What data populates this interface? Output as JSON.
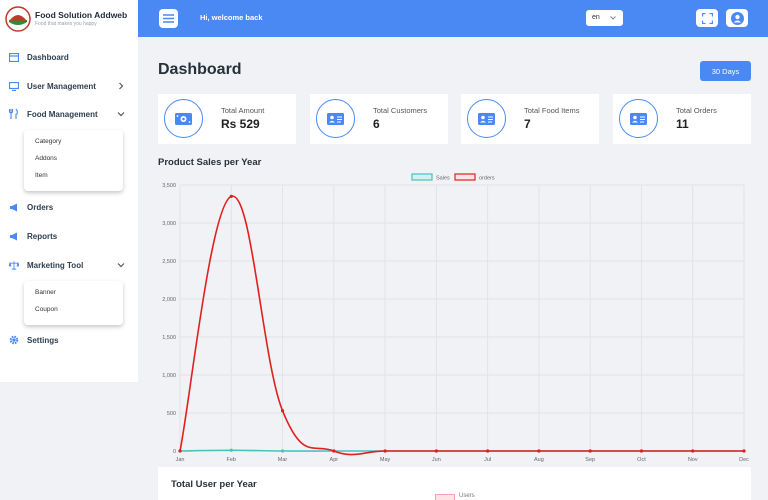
{
  "brand": {
    "name": "Food Solution Addweb",
    "tagline": "Food that makes you happy"
  },
  "sidebar": {
    "items": [
      {
        "label": "Dashboard"
      },
      {
        "label": "User Management"
      },
      {
        "label": "Food Management"
      },
      {
        "label": "Orders"
      },
      {
        "label": "Reports"
      },
      {
        "label": "Marketing Tool"
      },
      {
        "label": "Settings"
      }
    ],
    "food_submenu": [
      "Category",
      "Addons",
      "Item"
    ],
    "marketing_submenu": [
      "Banner",
      "Coupon"
    ]
  },
  "header": {
    "welcome": "Hi, welcome back",
    "language": "en"
  },
  "main": {
    "title": "Dashboard",
    "range_button": "30 Days",
    "cards": [
      {
        "label": "Total Amount",
        "value": "Rs 529"
      },
      {
        "label": "Total Customers",
        "value": "6"
      },
      {
        "label": "Total Food Items",
        "value": "7"
      },
      {
        "label": "Total Orders",
        "value": "11"
      }
    ],
    "sales_title": "Product Sales per Year",
    "users_title": "Total User per Year",
    "users_legend": "Users"
  },
  "colors": {
    "accent": "#4a89f3",
    "sales": "#4bc0c0",
    "orders": "#e02020"
  },
  "chart_data": {
    "type": "line",
    "title": "Product Sales per Year",
    "categories": [
      "Jan",
      "Feb",
      "Mar",
      "Apr",
      "May",
      "Jun",
      "Jul",
      "Aug",
      "Sep",
      "Oct",
      "Nov",
      "Dec"
    ],
    "series": [
      {
        "name": "Sales",
        "color": "#4bc0c0",
        "values": [
          0,
          10,
          0,
          0,
          0,
          0,
          0,
          0,
          0,
          0,
          0,
          0
        ]
      },
      {
        "name": "orders",
        "color": "#e02020",
        "values": [
          0,
          3350,
          530,
          0,
          0,
          0,
          0,
          0,
          0,
          0,
          0,
          0
        ]
      }
    ],
    "ylim": [
      0,
      3500
    ],
    "yticks": [
      0,
      500,
      1000,
      1500,
      2000,
      2500,
      3000,
      3500
    ],
    "ytick_labels": [
      "0",
      "500",
      "1,000",
      "1,500",
      "2,000",
      "2,500",
      "3,000",
      "3,500"
    ],
    "grid": true,
    "legend": "top-center"
  }
}
